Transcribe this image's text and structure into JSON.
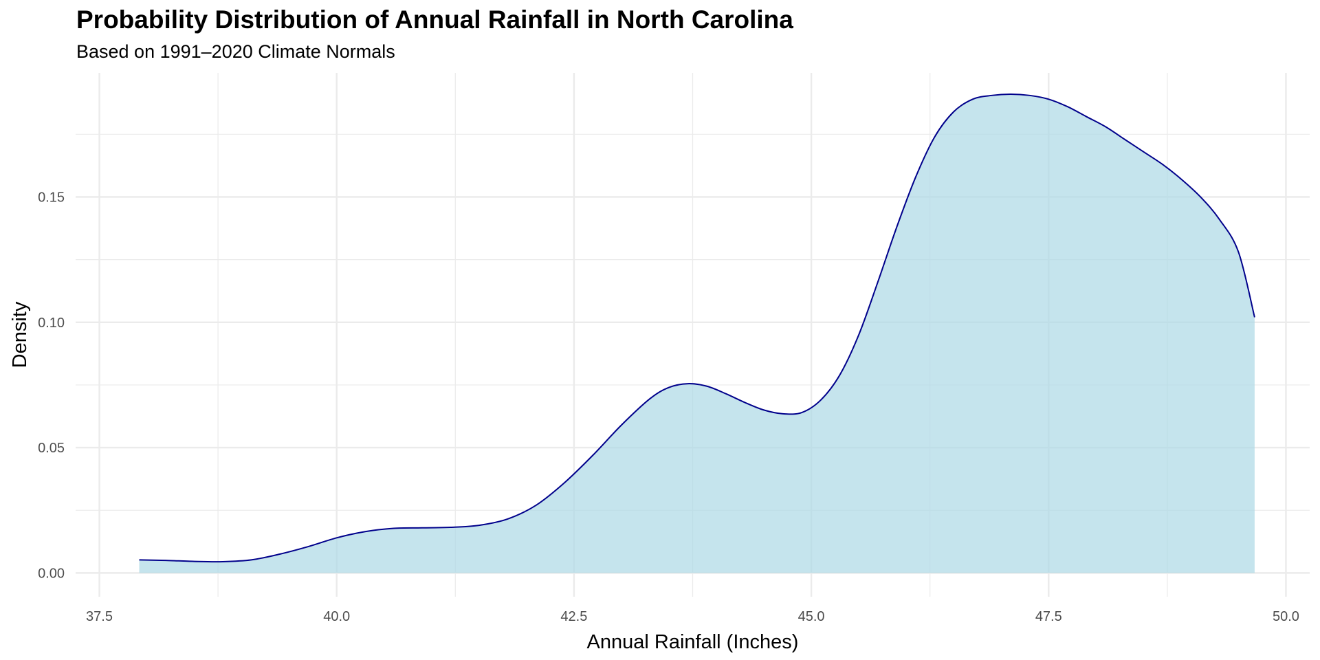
{
  "chart_data": {
    "type": "area",
    "title": "Probability Distribution of Annual Rainfall in North Carolina",
    "subtitle": "Based on 1991–2020 Climate Normals",
    "xlabel": "Annual Rainfall (Inches)",
    "ylabel": "Density",
    "xlim": [
      37.25,
      50.25
    ],
    "ylim": [
      -0.0095,
      0.1995
    ],
    "x_ticks": [
      37.5,
      40.0,
      42.5,
      45.0,
      47.5,
      50.0
    ],
    "x_tick_labels": [
      "37.5",
      "40.0",
      "42.5",
      "45.0",
      "47.5",
      "50.0"
    ],
    "y_ticks": [
      0.0,
      0.05,
      0.1,
      0.15
    ],
    "y_tick_labels": [
      "0.00",
      "0.05",
      "0.10",
      "0.15"
    ],
    "grid": true,
    "legend": "none",
    "fill_color": "#add8e6",
    "fill_opacity": 0.7,
    "line_color": "#00008b",
    "x": [
      37.92,
      38.2,
      38.5,
      38.8,
      39.1,
      39.4,
      39.7,
      40.0,
      40.3,
      40.6,
      40.9,
      41.2,
      41.5,
      41.8,
      42.1,
      42.4,
      42.7,
      43.0,
      43.3,
      43.5,
      43.7,
      43.9,
      44.1,
      44.3,
      44.5,
      44.7,
      44.9,
      45.1,
      45.3,
      45.5,
      45.7,
      45.9,
      46.1,
      46.3,
      46.5,
      46.7,
      46.9,
      47.1,
      47.3,
      47.5,
      47.7,
      47.9,
      48.1,
      48.3,
      48.5,
      48.7,
      48.9,
      49.1,
      49.3,
      49.5,
      49.67
    ],
    "y": [
      0.0052,
      0.005,
      0.0046,
      0.0045,
      0.0052,
      0.0075,
      0.0105,
      0.014,
      0.0165,
      0.0178,
      0.018,
      0.0182,
      0.019,
      0.0215,
      0.027,
      0.036,
      0.047,
      0.059,
      0.0695,
      0.074,
      0.0755,
      0.0745,
      0.0715,
      0.068,
      0.065,
      0.0635,
      0.064,
      0.069,
      0.079,
      0.095,
      0.116,
      0.138,
      0.158,
      0.174,
      0.184,
      0.189,
      0.1905,
      0.191,
      0.1905,
      0.189,
      0.186,
      0.182,
      0.178,
      0.173,
      0.168,
      0.163,
      0.157,
      0.15,
      0.141,
      0.128,
      0.102
    ]
  }
}
